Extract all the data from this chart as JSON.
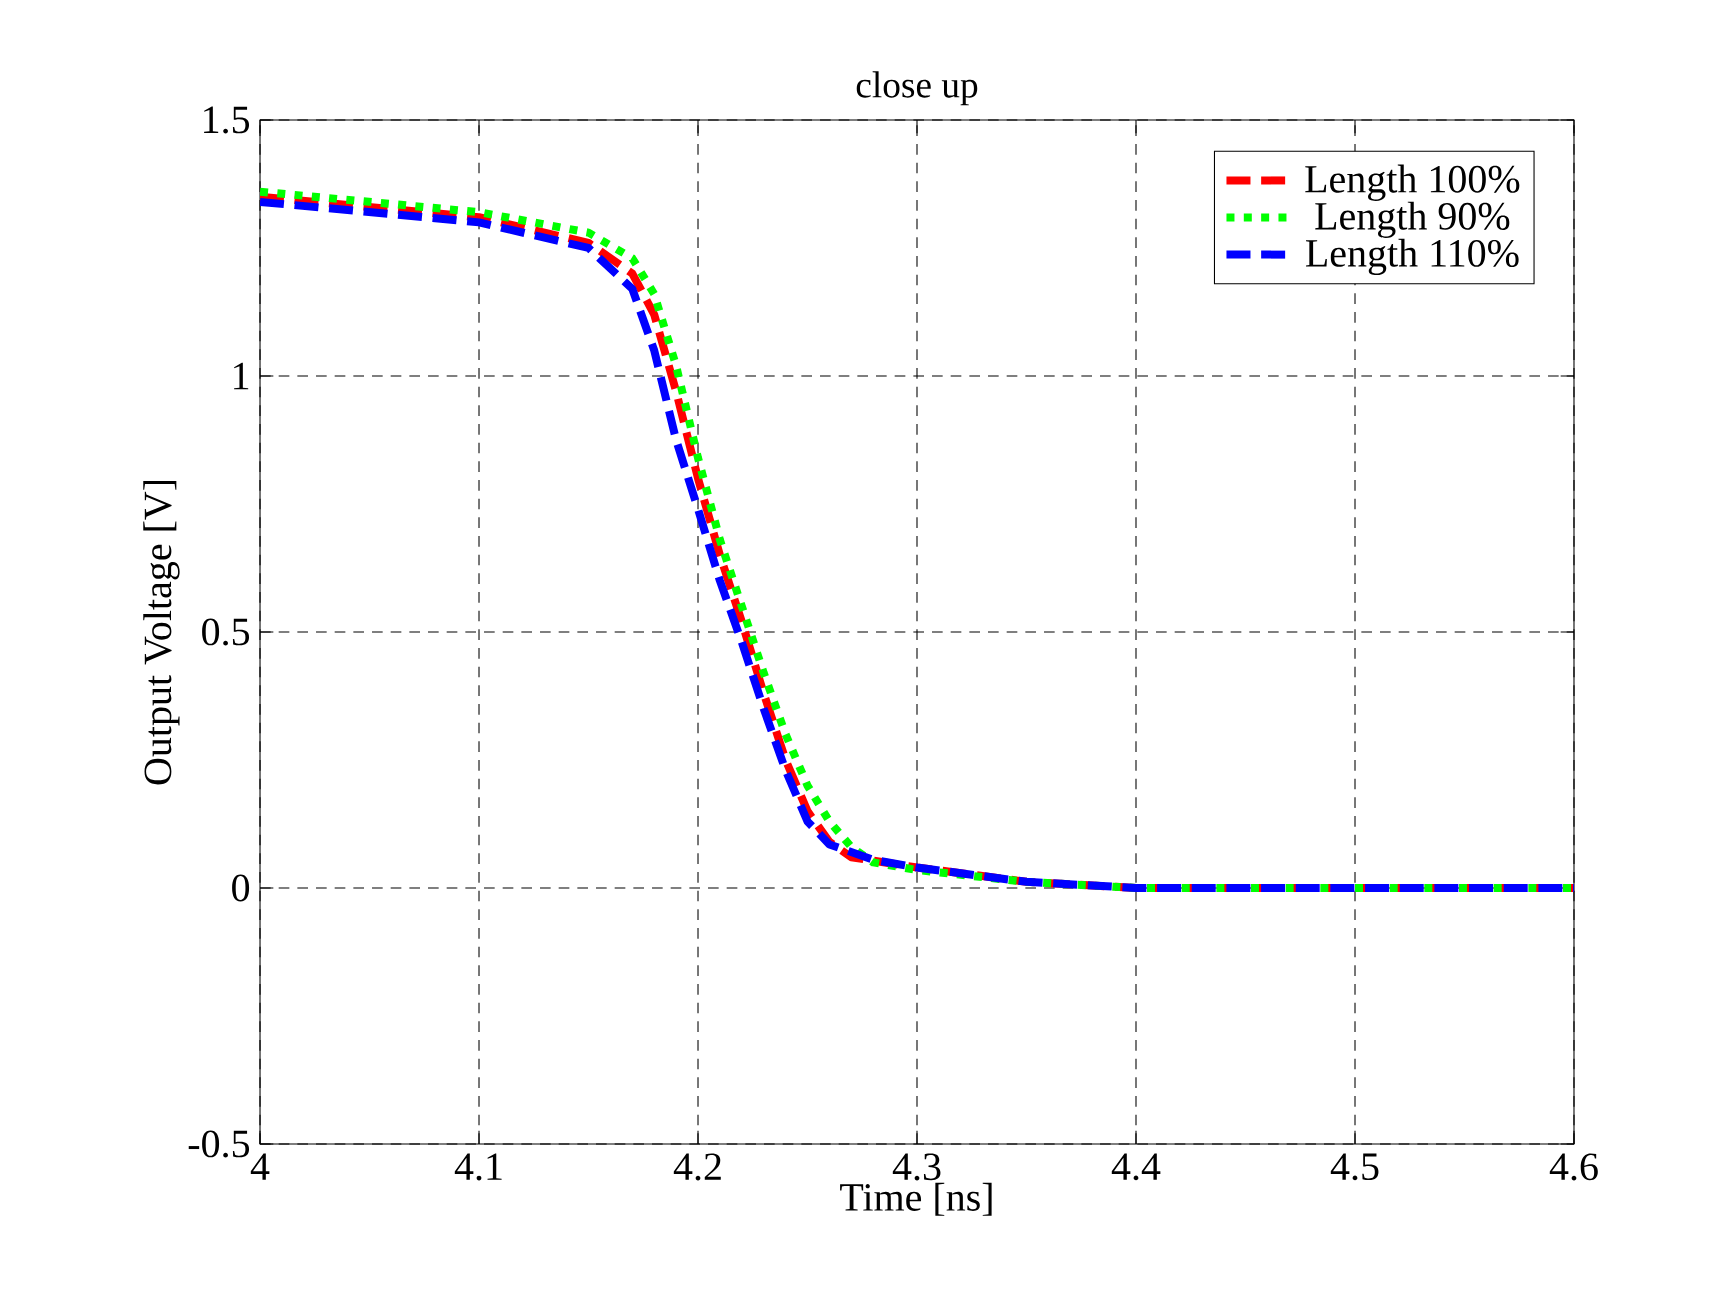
{
  "chart_data": {
    "type": "line",
    "title": "close up",
    "xlabel": "Time [ns]",
    "ylabel": "Output Voltage [V]",
    "xlim": [
      4,
      4.6
    ],
    "ylim": [
      -0.5,
      1.5
    ],
    "xticks": [
      4,
      4.1,
      4.2,
      4.3,
      4.4,
      4.5,
      4.6
    ],
    "yticks": [
      -0.5,
      0,
      0.5,
      1,
      1.5
    ],
    "grid": true,
    "legend": "top right",
    "series": [
      {
        "name": "Length 100%",
        "color": "#ff0000",
        "line_style": "dashed",
        "x": [
          4.0,
          4.1,
          4.15,
          4.17,
          4.18,
          4.19,
          4.2,
          4.21,
          4.22,
          4.23,
          4.24,
          4.25,
          4.26,
          4.27,
          4.3,
          4.35,
          4.4,
          4.6
        ],
        "values": [
          1.35,
          1.31,
          1.26,
          1.2,
          1.12,
          0.97,
          0.8,
          0.65,
          0.52,
          0.38,
          0.25,
          0.15,
          0.09,
          0.06,
          0.04,
          0.012,
          0,
          0
        ]
      },
      {
        "name": "Length 90%",
        "color": "#00ff00",
        "line_style": "dotted",
        "x": [
          4.0,
          4.1,
          4.15,
          4.17,
          4.18,
          4.19,
          4.2,
          4.21,
          4.22,
          4.23,
          4.24,
          4.25,
          4.26,
          4.27,
          4.28,
          4.3,
          4.35,
          4.4,
          4.6
        ],
        "values": [
          1.36,
          1.32,
          1.28,
          1.23,
          1.16,
          1.02,
          0.84,
          0.68,
          0.55,
          0.42,
          0.3,
          0.2,
          0.13,
          0.08,
          0.05,
          0.035,
          0.012,
          0,
          0
        ]
      },
      {
        "name": "Length 110%",
        "color": "#0000ff",
        "line_style": "dashed",
        "x": [
          4.0,
          4.1,
          4.15,
          4.17,
          4.18,
          4.19,
          4.2,
          4.21,
          4.22,
          4.23,
          4.24,
          4.25,
          4.26,
          4.28,
          4.3,
          4.35,
          4.4,
          4.6
        ],
        "values": [
          1.34,
          1.3,
          1.25,
          1.17,
          1.05,
          0.875,
          0.74,
          0.6,
          0.48,
          0.35,
          0.23,
          0.13,
          0.085,
          0.055,
          0.04,
          0.012,
          0,
          0
        ]
      }
    ]
  }
}
